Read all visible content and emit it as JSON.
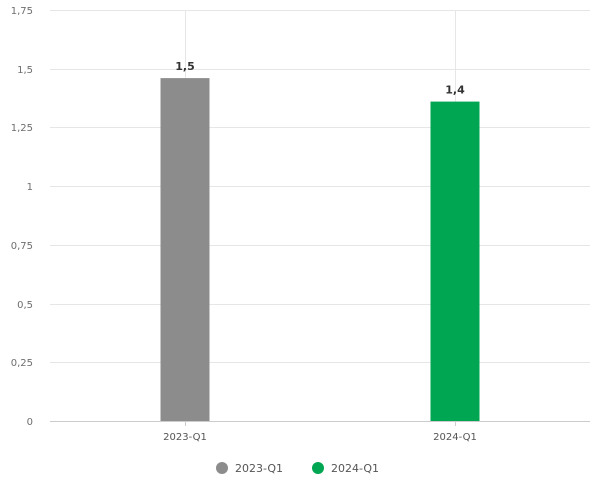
{
  "chart_data": {
    "type": "bar",
    "title": "",
    "xlabel": "",
    "ylabel": "",
    "categories": [
      "2023-Q1",
      "2024-Q1"
    ],
    "values": [
      1.46,
      1.36
    ],
    "data_labels": [
      "1,5",
      "1,4"
    ],
    "colors": [
      "#8c8c8c",
      "#00a651"
    ],
    "ylim": [
      0,
      1.75
    ],
    "yticks": [
      0,
      0.25,
      0.5,
      0.75,
      1,
      1.25,
      1.5,
      1.75
    ],
    "ytick_labels": [
      "0",
      "0,25",
      "0,5",
      "0,75",
      "1",
      "1,25",
      "1,5",
      "1,75"
    ],
    "grid": true,
    "legend": {
      "position": "bottom",
      "entries": [
        {
          "label": "2023-Q1",
          "color": "#8c8c8c"
        },
        {
          "label": "2024-Q1",
          "color": "#00a651"
        }
      ]
    }
  }
}
